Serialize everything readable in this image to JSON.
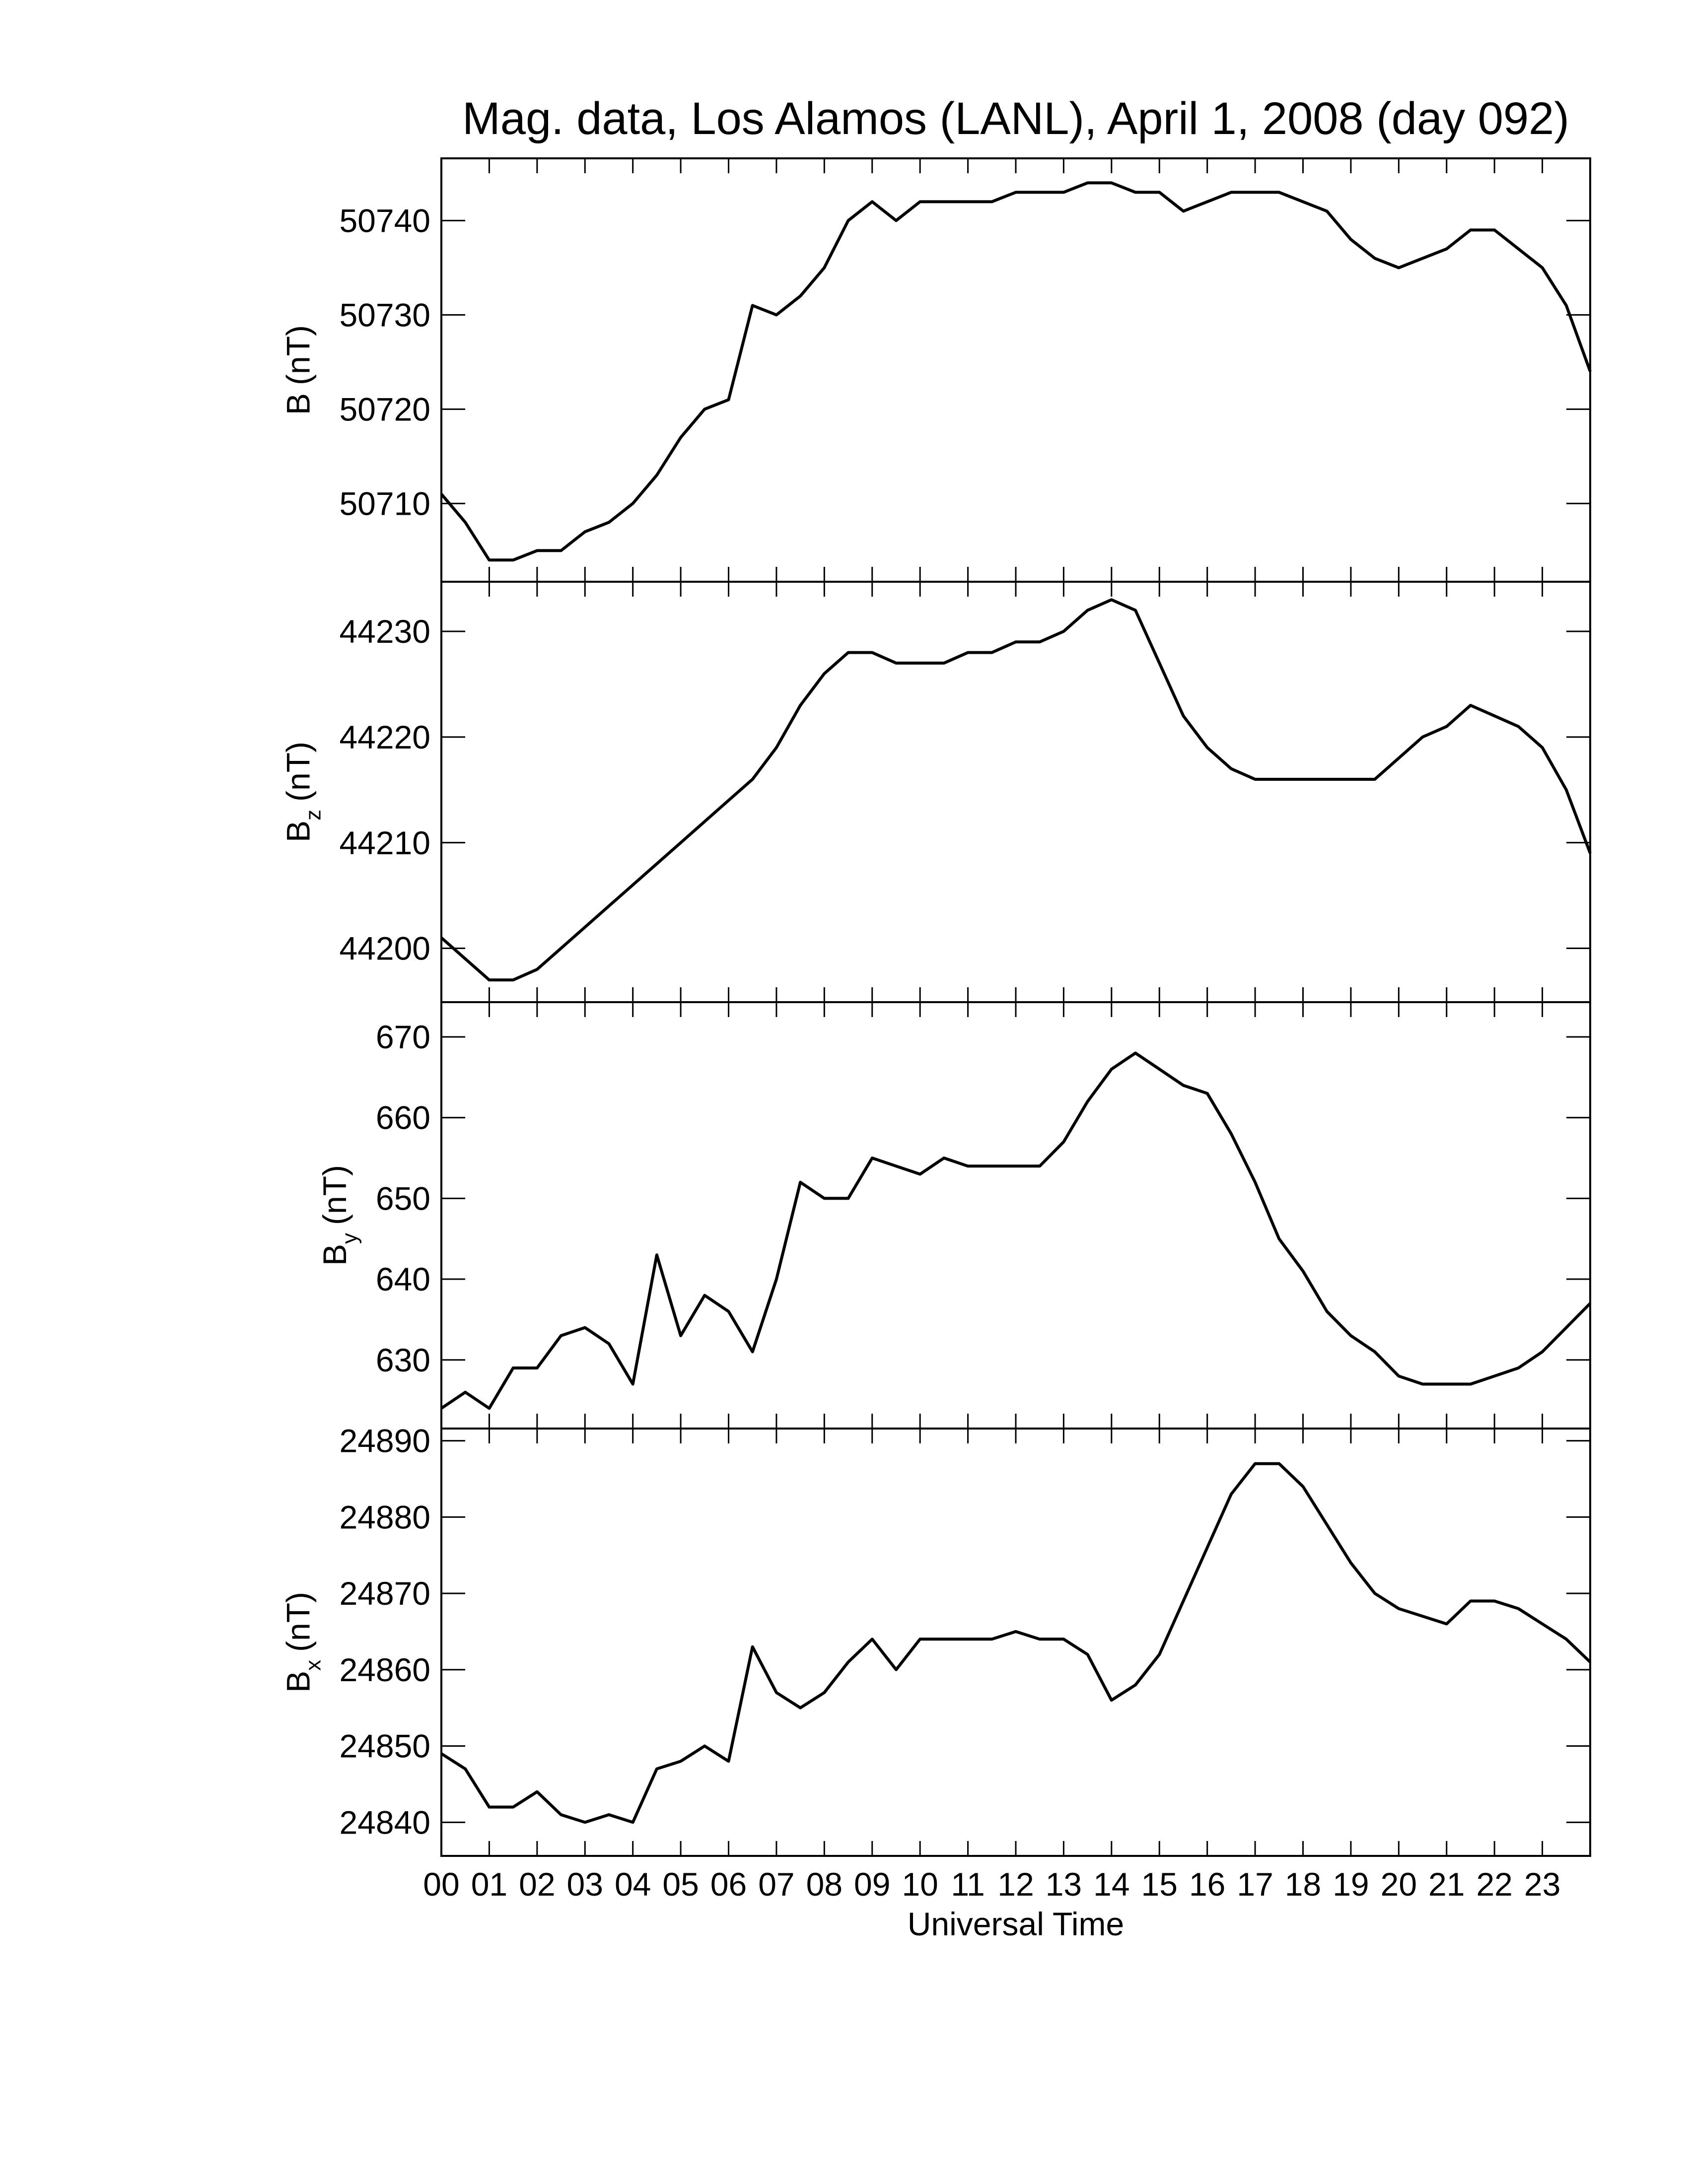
{
  "chart_data": [
    {
      "type": "line",
      "title": "Mag. data, Los Alamos (LANL), April 1, 2008 (day 092)",
      "ylabel_symbol": "B",
      "ylabel_unit": "(nT)",
      "x": [
        0,
        0.5,
        1,
        1.5,
        2,
        2.5,
        3,
        3.5,
        4,
        4.5,
        5,
        5.5,
        6,
        6.5,
        7,
        7.5,
        8,
        8.5,
        9,
        9.5,
        10,
        10.5,
        11,
        11.5,
        12,
        12.5,
        13,
        13.5,
        14,
        14.5,
        15,
        15.5,
        16,
        16.5,
        17,
        17.5,
        18,
        18.5,
        19,
        19.5,
        20,
        20.5,
        21,
        21.5,
        22,
        22.5,
        23,
        23.5,
        24
      ],
      "series": [
        {
          "color": "#000000",
          "values": [
            50711,
            50708,
            50704,
            50704,
            50705,
            50705,
            50707,
            50708,
            50710,
            50713,
            50717,
            50720,
            50721,
            50731,
            50730,
            50732,
            50735,
            50740,
            50742,
            50740,
            50742,
            50742,
            50742,
            50742,
            50743,
            50743,
            50743,
            50744,
            50744,
            50743,
            50743,
            50741,
            50742,
            50743,
            50743,
            50743,
            50742,
            50741,
            50738,
            50736,
            50735,
            50736,
            50737,
            50739,
            50739,
            50737,
            50735,
            50731,
            50724
          ]
        }
      ],
      "xlim": [
        0,
        24
      ],
      "xticks": [
        {
          "value": 0,
          "label": "00"
        },
        {
          "value": 1,
          "label": "01"
        },
        {
          "value": 2,
          "label": "02"
        },
        {
          "value": 3,
          "label": "03"
        },
        {
          "value": 4,
          "label": "04"
        },
        {
          "value": 5,
          "label": "05"
        },
        {
          "value": 6,
          "label": "06"
        },
        {
          "value": 7,
          "label": "07"
        },
        {
          "value": 8,
          "label": "08"
        },
        {
          "value": 9,
          "label": "09"
        },
        10,
        11,
        12,
        13,
        14,
        15,
        16,
        17,
        18,
        19,
        20,
        21,
        22,
        23
      ],
      "show_xticklabels": false,
      "ylim": [
        50701.7,
        50746.6
      ],
      "yticks": [
        50710,
        50720,
        50730,
        50740
      ]
    },
    {
      "type": "line",
      "ylabel_symbol": "B",
      "ylabel_sub": "z",
      "ylabel_unit": "(nT)",
      "x": [
        0,
        0.5,
        1,
        1.5,
        2,
        2.5,
        3,
        3.5,
        4,
        4.5,
        5,
        5.5,
        6,
        6.5,
        7,
        7.5,
        8,
        8.5,
        9,
        9.5,
        10,
        10.5,
        11,
        11.5,
        12,
        12.5,
        13,
        13.5,
        14,
        14.5,
        15,
        15.5,
        16,
        16.5,
        17,
        17.5,
        18,
        18.5,
        19,
        19.5,
        20,
        20.5,
        21,
        21.5,
        22,
        22.5,
        23,
        23.5,
        24
      ],
      "series": [
        {
          "color": "#000000",
          "values": [
            44201,
            44199,
            44197,
            44197,
            44198,
            44200,
            44202,
            44204,
            44206,
            44208,
            44210,
            44212,
            44214,
            44216,
            44219,
            44223,
            44226,
            44228,
            44228,
            44227,
            44227,
            44227,
            44228,
            44228,
            44229,
            44229,
            44230,
            44232,
            44233,
            44232,
            44227,
            44222,
            44219,
            44217,
            44216,
            44216,
            44216,
            44216,
            44216,
            44216,
            44218,
            44220,
            44221,
            44223,
            44222,
            44221,
            44219,
            44215,
            44209
          ]
        }
      ],
      "xlim": [
        0,
        24
      ],
      "xticks": [
        {
          "value": 0,
          "label": "00"
        },
        {
          "value": 1,
          "label": "01"
        },
        {
          "value": 2,
          "label": "02"
        },
        {
          "value": 3,
          "label": "03"
        },
        {
          "value": 4,
          "label": "04"
        },
        {
          "value": 5,
          "label": "05"
        },
        {
          "value": 6,
          "label": "06"
        },
        {
          "value": 7,
          "label": "07"
        },
        {
          "value": 8,
          "label": "08"
        },
        {
          "value": 9,
          "label": "09"
        },
        10,
        11,
        12,
        13,
        14,
        15,
        16,
        17,
        18,
        19,
        20,
        21,
        22,
        23
      ],
      "show_xticklabels": false,
      "ylim": [
        44194.9,
        44234.7
      ],
      "yticks": [
        44200,
        44210,
        44220,
        44230
      ]
    },
    {
      "type": "line",
      "ylabel_symbol": "B",
      "ylabel_sub": "y",
      "ylabel_unit": "(nT)",
      "x": [
        0,
        0.5,
        1,
        1.5,
        2,
        2.5,
        3,
        3.5,
        4,
        4.5,
        5,
        5.5,
        6,
        6.5,
        7,
        7.5,
        8,
        8.5,
        9,
        9.5,
        10,
        10.5,
        11,
        11.5,
        12,
        12.5,
        13,
        13.5,
        14,
        14.5,
        15,
        15.5,
        16,
        16.5,
        17,
        17.5,
        18,
        18.5,
        19,
        19.5,
        20,
        20.5,
        21,
        21.5,
        22,
        22.5,
        23,
        23.5,
        24
      ],
      "series": [
        {
          "color": "#000000",
          "values": [
            624,
            626,
            624,
            629,
            629,
            633,
            634,
            632,
            627,
            643,
            633,
            638,
            636,
            631,
            640,
            652,
            650,
            650,
            655,
            654,
            653,
            655,
            654,
            654,
            654,
            654,
            657,
            662,
            666,
            668,
            666,
            664,
            663,
            658,
            652,
            645,
            641,
            636,
            633,
            631,
            628,
            627,
            627,
            627,
            628,
            629,
            631,
            634,
            637
          ]
        }
      ],
      "xlim": [
        0,
        24
      ],
      "xticks": [
        {
          "value": 0,
          "label": "00"
        },
        {
          "value": 1,
          "label": "01"
        },
        {
          "value": 2,
          "label": "02"
        },
        {
          "value": 3,
          "label": "03"
        },
        {
          "value": 4,
          "label": "04"
        },
        {
          "value": 5,
          "label": "05"
        },
        {
          "value": 6,
          "label": "06"
        },
        {
          "value": 7,
          "label": "07"
        },
        {
          "value": 8,
          "label": "08"
        },
        {
          "value": 9,
          "label": "09"
        },
        10,
        11,
        12,
        13,
        14,
        15,
        16,
        17,
        18,
        19,
        20,
        21,
        22,
        23
      ],
      "show_xticklabels": false,
      "ylim": [
        621.5,
        674.3
      ],
      "yticks": [
        630,
        640,
        650,
        660,
        670
      ]
    },
    {
      "type": "line",
      "xlabel": "Universal Time",
      "ylabel_symbol": "B",
      "ylabel_sub": "x",
      "ylabel_unit": "(nT)",
      "x": [
        0,
        0.5,
        1,
        1.5,
        2,
        2.5,
        3,
        3.5,
        4,
        4.5,
        5,
        5.5,
        6,
        6.5,
        7,
        7.5,
        8,
        8.5,
        9,
        9.5,
        10,
        10.5,
        11,
        11.5,
        12,
        12.5,
        13,
        13.5,
        14,
        14.5,
        15,
        15.5,
        16,
        16.5,
        17,
        17.5,
        18,
        18.5,
        19,
        19.5,
        20,
        20.5,
        21,
        21.5,
        22,
        22.5,
        23,
        23.5,
        24
      ],
      "series": [
        {
          "color": "#000000",
          "values": [
            24849,
            24847,
            24842,
            24842,
            24844,
            24841,
            24840,
            24841,
            24840,
            24847,
            24848,
            24850,
            24848,
            24863,
            24857,
            24855,
            24857,
            24861,
            24864,
            24860,
            24864,
            24864,
            24864,
            24864,
            24865,
            24864,
            24864,
            24862,
            24856,
            24858,
            24862,
            24869,
            24876,
            24883,
            24887,
            24887,
            24884,
            24879,
            24874,
            24870,
            24868,
            24867,
            24866,
            24869,
            24869,
            24868,
            24866,
            24864,
            24861
          ]
        }
      ],
      "xlim": [
        0,
        24
      ],
      "xticks": [
        {
          "value": 0,
          "label": "00"
        },
        {
          "value": 1,
          "label": "01"
        },
        {
          "value": 2,
          "label": "02"
        },
        {
          "value": 3,
          "label": "03"
        },
        {
          "value": 4,
          "label": "04"
        },
        {
          "value": 5,
          "label": "05"
        },
        {
          "value": 6,
          "label": "06"
        },
        {
          "value": 7,
          "label": "07"
        },
        {
          "value": 8,
          "label": "08"
        },
        {
          "value": 9,
          "label": "09"
        },
        10,
        11,
        12,
        13,
        14,
        15,
        16,
        17,
        18,
        19,
        20,
        21,
        22,
        23
      ],
      "show_xticklabels": true,
      "ylim": [
        24835.6,
        24891.6
      ],
      "yticks": [
        24840,
        24850,
        24860,
        24870,
        24880,
        24890
      ]
    }
  ]
}
